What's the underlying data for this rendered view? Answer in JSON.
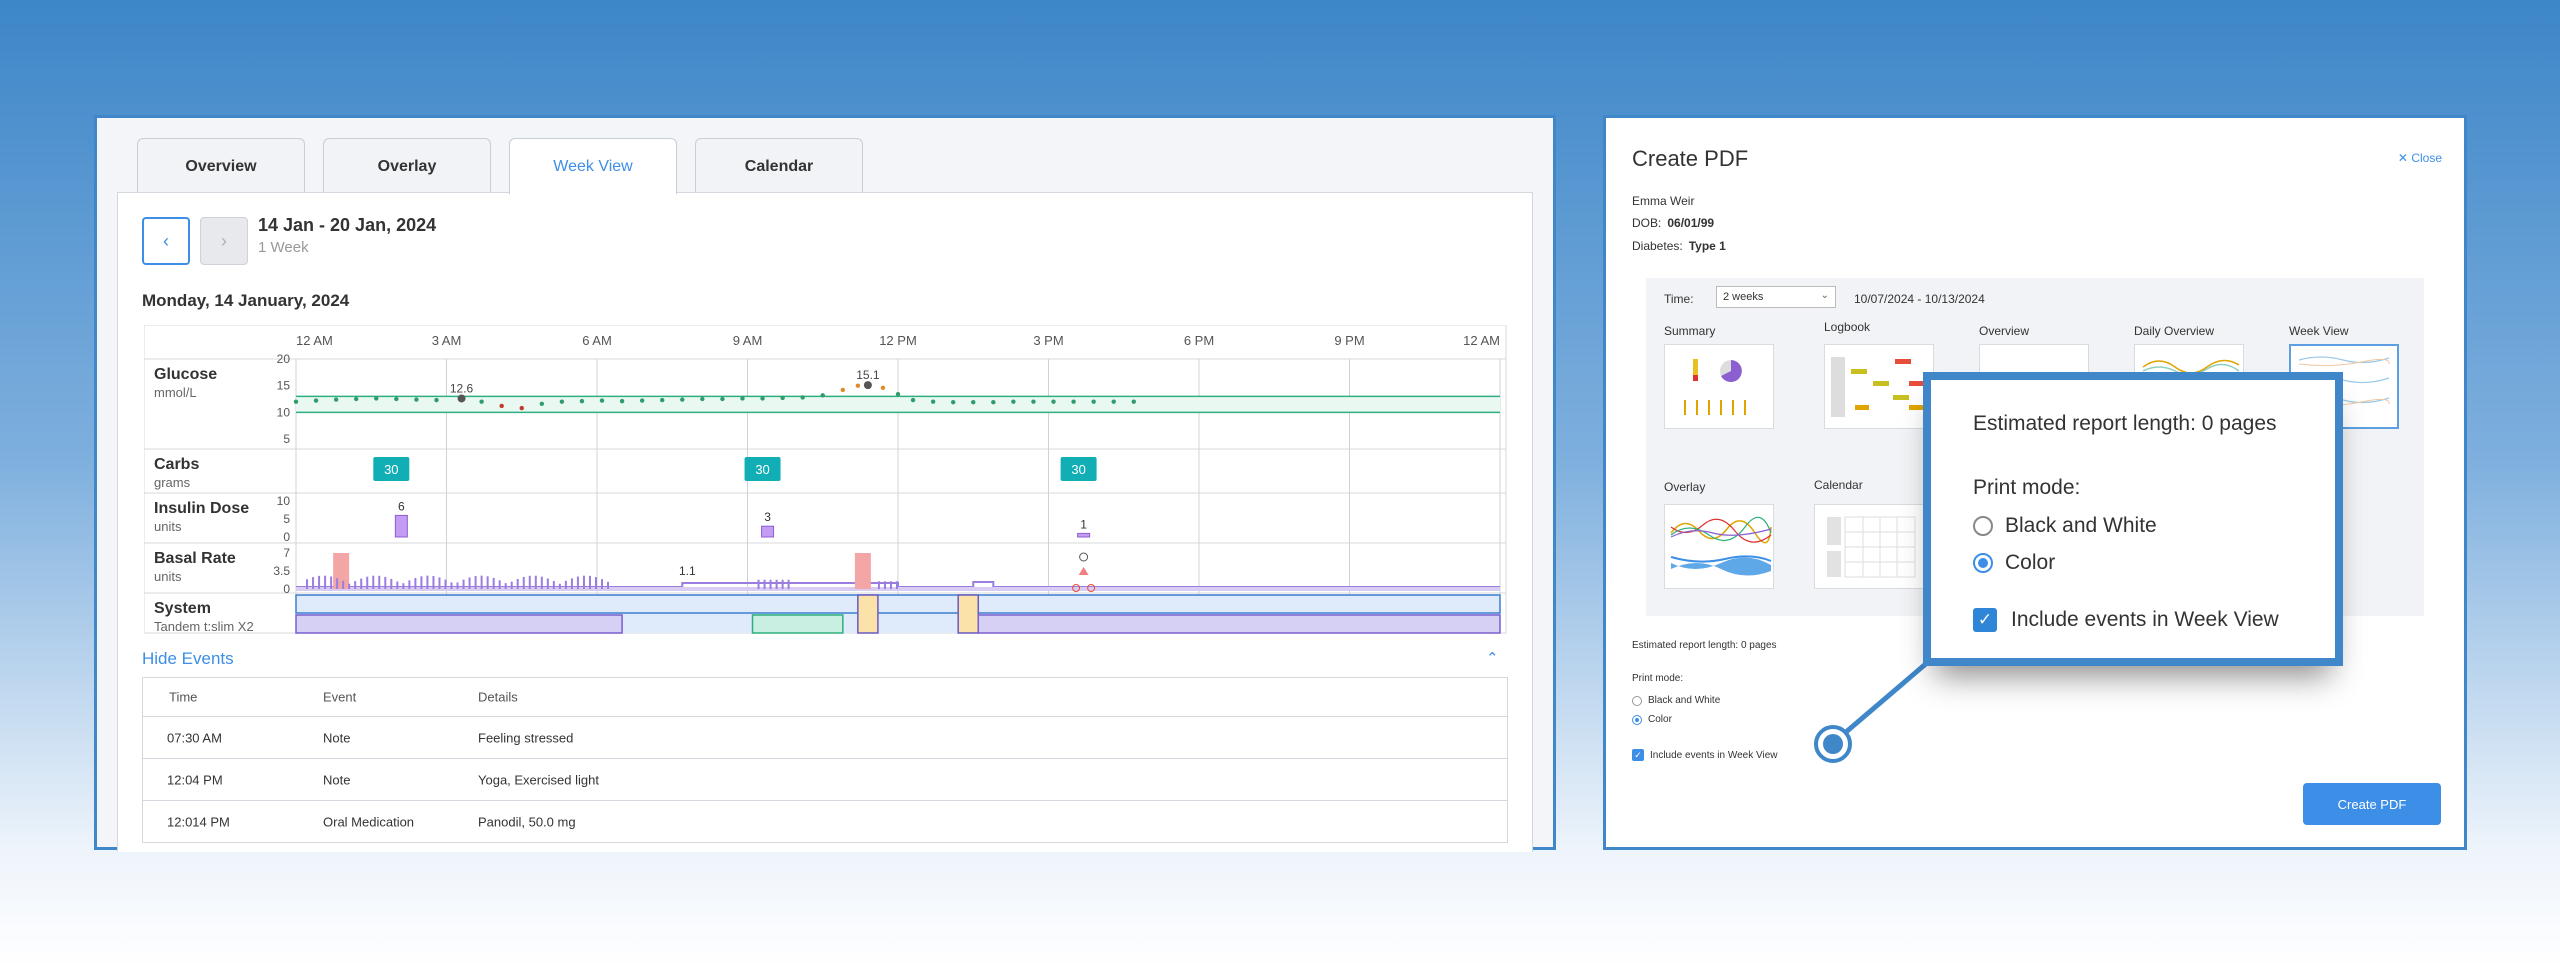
{
  "tabs": [
    {
      "label": "Overview"
    },
    {
      "label": "Overlay"
    },
    {
      "label": "Week View",
      "active": true
    },
    {
      "label": "Calendar"
    }
  ],
  "nav": {
    "prev": "‹",
    "next": "›"
  },
  "range": {
    "title": "14 Jan - 20 Jan, 2024",
    "subtitle": "1 Week"
  },
  "day_label": "Monday, 14 January, 2024",
  "chart_data": {
    "type": "line",
    "x_ticks": [
      "12 AM",
      "3 AM",
      "6 AM",
      "9 AM",
      "12 PM",
      "3 PM",
      "6 PM",
      "9 PM",
      "12 AM"
    ],
    "rows": [
      {
        "name": "Glucose",
        "unit": "mmol/L",
        "ticks": [
          "20",
          "15",
          "10",
          "5"
        ]
      },
      {
        "name": "Carbs",
        "unit": "grams"
      },
      {
        "name": "Insulin Dose",
        "unit": "units",
        "ticks": [
          "10",
          "5",
          "0"
        ]
      },
      {
        "name": "Basal Rate",
        "unit": "units",
        "ticks": [
          "7",
          "3.5",
          "0"
        ]
      },
      {
        "name": "System",
        "unit": "Tandem t:slim X2"
      }
    ],
    "glucose_target_range": [
      10,
      13
    ],
    "glucose_annotations": [
      {
        "label": "12.6",
        "hour": 3.3,
        "value": 12.6
      },
      {
        "label": "15.1",
        "hour": 11.4,
        "value": 15.1
      }
    ],
    "carbs": [
      {
        "hour": 1.9,
        "value": "30"
      },
      {
        "hour": 9.3,
        "value": "30"
      },
      {
        "hour": 15.6,
        "value": "30"
      }
    ],
    "insulin": [
      {
        "hour": 2.1,
        "value": 6,
        "label": "6"
      },
      {
        "hour": 9.4,
        "value": 3,
        "label": "3"
      },
      {
        "hour": 15.7,
        "value": 1,
        "label": "1"
      }
    ],
    "basal_label": {
      "hour": 7.8,
      "label": "1.1"
    },
    "basal_spikes": [
      {
        "hour": 0.9,
        "value": 7
      },
      {
        "hour": 11.3,
        "value": 7
      }
    ],
    "glucose_series": [
      [
        0.0,
        12.0
      ],
      [
        0.4,
        12.2
      ],
      [
        0.8,
        12.4
      ],
      [
        1.2,
        12.5
      ],
      [
        1.6,
        12.6
      ],
      [
        2.0,
        12.5
      ],
      [
        2.4,
        12.4
      ],
      [
        2.8,
        12.3
      ],
      [
        3.3,
        12.6
      ],
      [
        3.7,
        12.0
      ],
      [
        4.1,
        11.2
      ],
      [
        4.5,
        10.8
      ],
      [
        4.9,
        11.6
      ],
      [
        5.3,
        12.0
      ],
      [
        5.7,
        12.1
      ],
      [
        6.1,
        12.2
      ],
      [
        6.5,
        12.1
      ],
      [
        6.9,
        12.2
      ],
      [
        7.3,
        12.3
      ],
      [
        7.7,
        12.4
      ],
      [
        8.1,
        12.5
      ],
      [
        8.5,
        12.5
      ],
      [
        8.9,
        12.6
      ],
      [
        9.3,
        12.6
      ],
      [
        9.7,
        12.7
      ],
      [
        10.1,
        12.8
      ],
      [
        10.5,
        13.2
      ],
      [
        10.9,
        14.2
      ],
      [
        11.2,
        15.0
      ],
      [
        11.4,
        15.1
      ],
      [
        11.7,
        14.6
      ],
      [
        12.0,
        13.4
      ],
      [
        12.3,
        12.3
      ],
      [
        12.7,
        12.0
      ],
      [
        13.1,
        11.9
      ],
      [
        13.5,
        11.9
      ],
      [
        13.9,
        11.9
      ],
      [
        14.3,
        12.0
      ],
      [
        14.7,
        12.0
      ],
      [
        15.1,
        12.0
      ],
      [
        15.5,
        12.0
      ],
      [
        15.9,
        12.0
      ],
      [
        16.3,
        12.0
      ],
      [
        16.7,
        12.0
      ]
    ]
  },
  "hide_events": "Hide Events",
  "events": {
    "headers": [
      "Time",
      "Event",
      "Details"
    ],
    "rows": [
      [
        "07:30 AM",
        "Note",
        "Feeling stressed"
      ],
      [
        "12:04 PM",
        "Note",
        "Yoga, Exercised light"
      ],
      [
        "12:014 PM",
        "Oral Medication",
        "Panodil, 50.0 mg"
      ]
    ]
  },
  "pdf": {
    "title": "Create PDF",
    "close": "Close",
    "patient_name": "Emma Weir",
    "dob_label": "DOB:",
    "dob": "06/01/99",
    "diabetes_label": "Diabetes:",
    "diabetes": "Type 1",
    "time_label": "Time:",
    "time_value": "2 weeks",
    "dates": "10/07/2024 - 10/13/2024",
    "reports": [
      "Summary",
      "Logbook",
      "Overview",
      "Daily Overview",
      "Week View",
      "Overlay",
      "Calendar"
    ],
    "estimate": "Estimated report length: 0 pages",
    "print_mode": "Print mode:",
    "mode_bw": "Black and White",
    "mode_color": "Color",
    "include_events": "Include events in Week View",
    "create_btn": "Create PDF",
    "check_mark": "✓"
  },
  "colors": {
    "accent": "#3d8ee6",
    "frame": "#3f87c9",
    "glucose": "#2eaf7d",
    "carbs": "#12aeb6",
    "insulin": "#c59cf4",
    "basal": "#9b7de0",
    "spike": "#f4a6a6"
  }
}
